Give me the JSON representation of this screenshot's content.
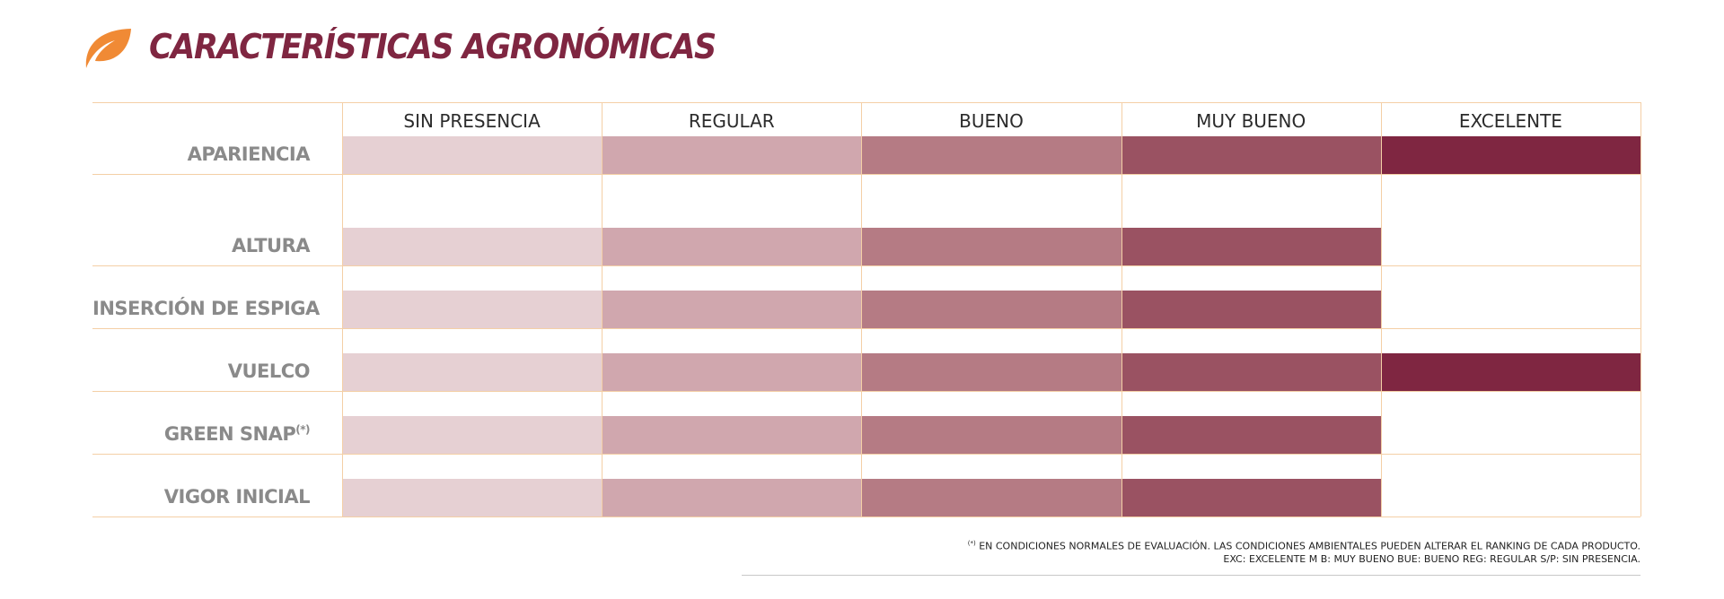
{
  "title": "CARACTERÍSTICAS AGRONÓMICAS",
  "colors": {
    "title": "#7f2641",
    "leaf": "#f08a35",
    "grid_line": "#f4cfa6",
    "levels": [
      "#e6d0d3",
      "#d0a7ae",
      "#b57b84",
      "#9a5262",
      "#7f2641"
    ]
  },
  "icons": {
    "header": "leaf-icon"
  },
  "chart_data": {
    "type": "table",
    "columns": [
      "SIN PRESENCIA",
      "REGULAR",
      "BUENO",
      "MUY BUENO",
      "EXCELENTE"
    ],
    "rows": [
      {
        "label": "APARIENCIA",
        "sup": "",
        "level": 5
      },
      {
        "label": "ALTURA",
        "sup": "",
        "level": 4
      },
      {
        "label": "INSERCIÓN DE ESPIGA",
        "sup": "",
        "level": 4
      },
      {
        "label": "VUELCO",
        "sup": "",
        "level": 5
      },
      {
        "label": "GREEN SNAP",
        "sup": "(*)",
        "level": 4
      },
      {
        "label": "VIGOR INICIAL",
        "sup": "",
        "level": 4
      }
    ]
  },
  "footnote": {
    "marker": "(*)",
    "line1": " EN CONDICIONES NORMALES DE EVALUACIÓN. LAS CONDICIONES AMBIENTALES PUEDEN ALTERAR EL RANKING DE CADA PRODUCTO.",
    "line2": "EXC: EXCELENTE M B: MUY BUENO BUE: BUENO REG: REGULAR S/P: SIN PRESENCIA."
  }
}
